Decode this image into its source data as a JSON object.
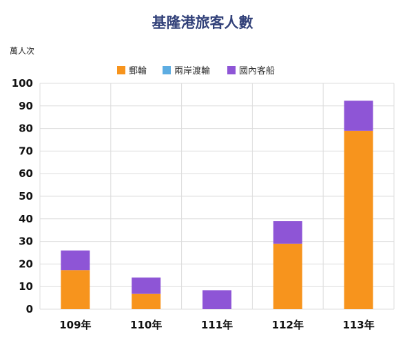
{
  "chart_data": {
    "type": "bar",
    "stacked": true,
    "title": "基隆港旅客人數",
    "ylabel": "萬人次",
    "categories": [
      "109年",
      "110年",
      "111年",
      "112年",
      "113年"
    ],
    "series": [
      {
        "name": "郵輪",
        "color": "#f7941d",
        "values": [
          17.3,
          6.8,
          0,
          29,
          79
        ]
      },
      {
        "name": "兩岸渡輪",
        "color": "#5dade2",
        "values": [
          0,
          0,
          0,
          0,
          0
        ]
      },
      {
        "name": "國內客船",
        "color": "#8e55d6",
        "values": [
          8.7,
          7.2,
          8.4,
          10,
          13.3
        ]
      }
    ],
    "ylim": [
      0,
      100
    ],
    "yticks": [
      0,
      10,
      20,
      30,
      40,
      50,
      60,
      70,
      80,
      90,
      100
    ],
    "grid": true,
    "legend_position": "top"
  }
}
